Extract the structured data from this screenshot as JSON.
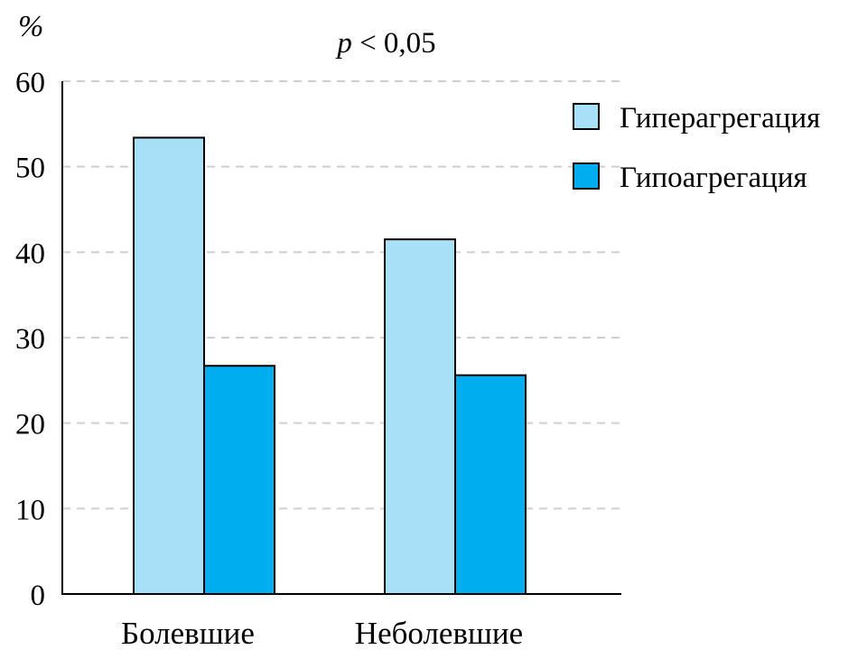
{
  "chart_data": {
    "type": "bar",
    "ylabel": "%",
    "annotation": {
      "italic": "p",
      "rest": " < 0,05"
    },
    "categories": [
      "Болевшие",
      "Неболевшие"
    ],
    "series": [
      {
        "name": "Гиперагрегация",
        "values": [
          53.4,
          41.5
        ],
        "color": "#a8e0f8"
      },
      {
        "name": "Гипоагрегация",
        "values": [
          26.7,
          25.6
        ],
        "color": "#00aeef"
      }
    ],
    "ylim": [
      0,
      60
    ],
    "yticks": [
      0,
      10,
      20,
      30,
      40,
      50,
      60
    ],
    "grid": true,
    "grid_style": "dashed",
    "legend_position": "top-right"
  }
}
